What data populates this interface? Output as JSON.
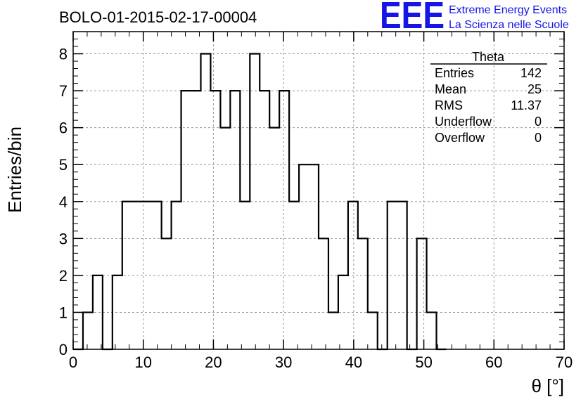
{
  "chart_data": {
    "type": "bar",
    "title": "BOLO-01-2015-02-17-00004",
    "xlabel": "θ [°]",
    "ylabel": "Entries/bin",
    "xlim": [
      0,
      70
    ],
    "ylim": [
      0,
      8.6
    ],
    "grid": true,
    "bin_width": 1.4,
    "bin_low_edges": [
      0,
      1.4,
      2.8,
      4.2,
      5.6,
      7,
      8.4,
      9.8,
      11.2,
      12.6,
      14,
      15.4,
      16.8,
      18.2,
      19.6,
      21,
      22.4,
      23.8,
      25.2,
      26.6,
      28,
      29.4,
      30.8,
      32.2,
      33.6,
      35,
      36.4,
      37.8,
      39.2,
      40.6,
      42,
      43.4,
      44.8,
      46.2,
      47.6,
      49,
      50.4,
      51.8
    ],
    "values": [
      0,
      1,
      2,
      0,
      2,
      4,
      4,
      4,
      4,
      3,
      4,
      7,
      7,
      8,
      7,
      6,
      7,
      4,
      8,
      7,
      6,
      7,
      4,
      5,
      5,
      3,
      1,
      2,
      4,
      3,
      1,
      0,
      4,
      4,
      0,
      3,
      1,
      0
    ],
    "x_ticks": [
      0,
      10,
      20,
      30,
      40,
      50,
      60,
      70
    ],
    "y_ticks": [
      0,
      1,
      2,
      3,
      4,
      5,
      6,
      7,
      8
    ],
    "stats_box": {
      "name": "Theta",
      "entries_label": "Entries",
      "entries": "142",
      "mean_label": "Mean",
      "mean": "25",
      "rms_label": "RMS",
      "rms": "11.37",
      "underflow_label": "Underflow",
      "underflow": "0",
      "overflow_label": "Overflow",
      "overflow": "0"
    }
  },
  "logo": {
    "mark": "EEE",
    "line1": "Extreme Energy Events",
    "line2": "La Scienza nelle Scuole"
  },
  "colors": {
    "logo": "#1515e6",
    "grid": "#9a9a9a",
    "line": "#000000"
  }
}
